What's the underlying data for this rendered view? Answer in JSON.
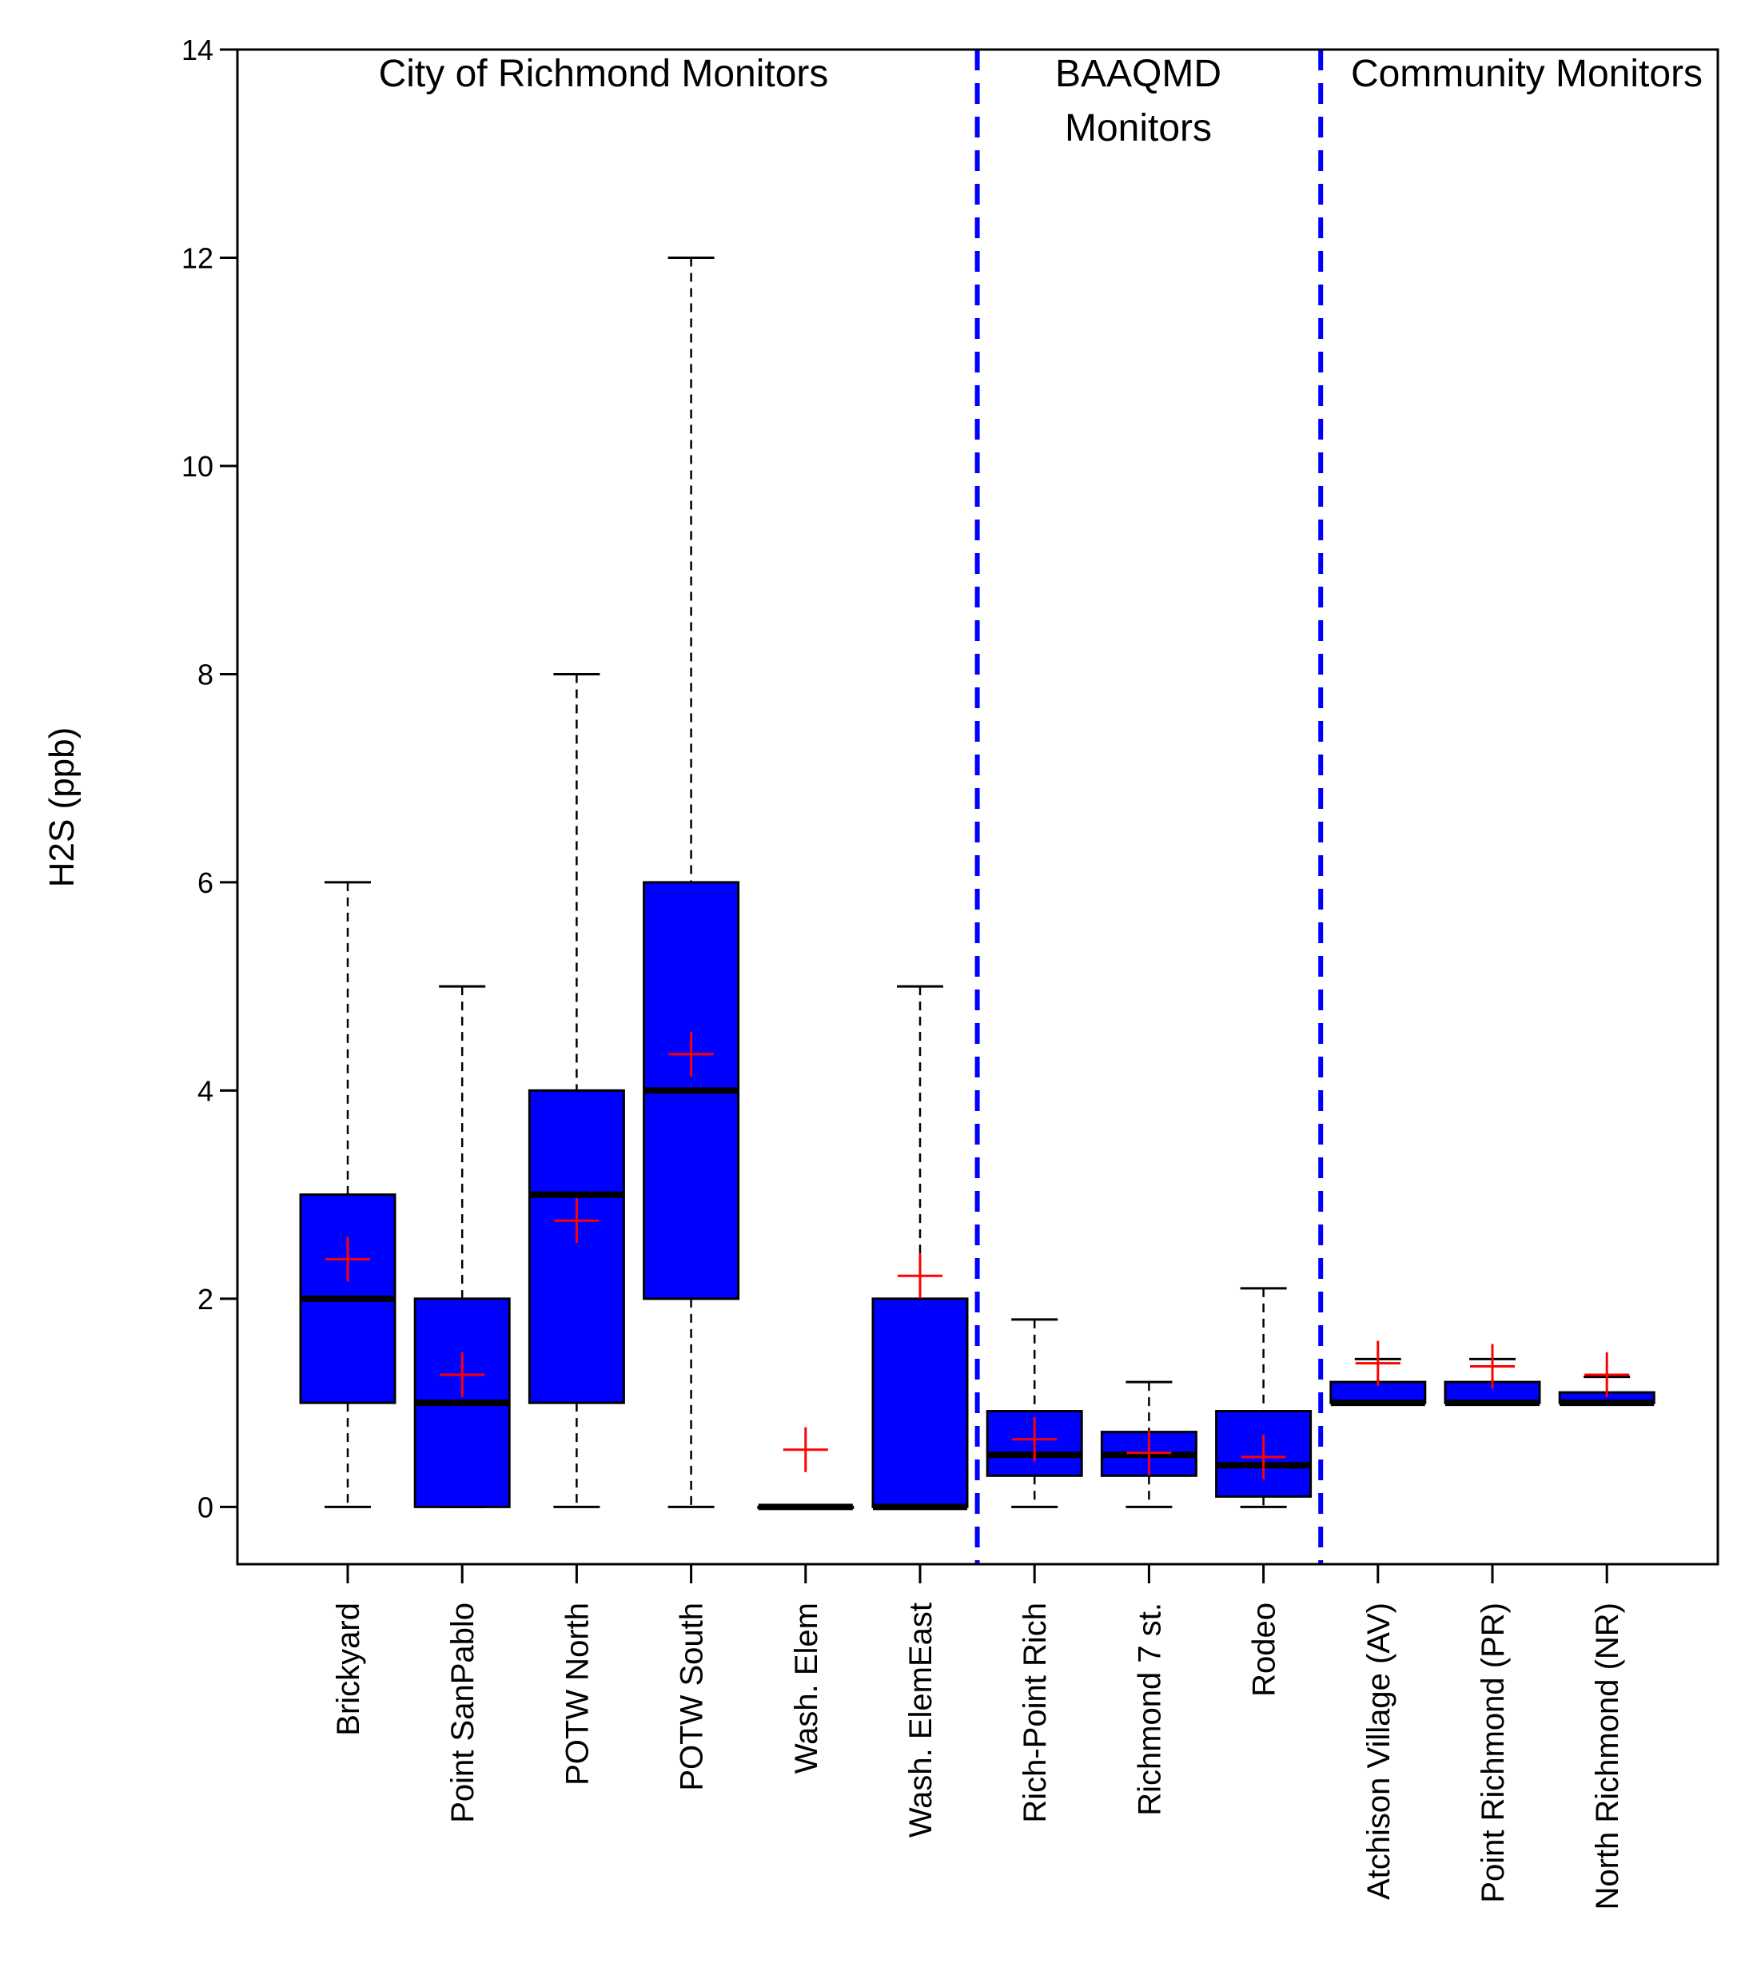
{
  "chart_data": {
    "type": "boxplot",
    "title": "",
    "xlabel": "",
    "ylabel": "H2S (ppb)",
    "ylim": [
      -0.55,
      14
    ],
    "yticks": [
      0,
      2,
      4,
      6,
      8,
      10,
      12,
      14
    ],
    "grid": false,
    "colors": {
      "box": "#0000ff",
      "median": "#000000",
      "mean_marker": "#ff0000",
      "divider": "#0000ff"
    },
    "groups": [
      {
        "label_lines": [
          "City of Richmond Monitors"
        ],
        "start_index": 0,
        "end_index": 5
      },
      {
        "label_lines": [
          "BAAQMD",
          "Monitors"
        ],
        "start_index": 6,
        "end_index": 8
      },
      {
        "label_lines": [
          "Community Monitors"
        ],
        "start_index": 9,
        "end_index": 11
      }
    ],
    "series": [
      {
        "name": "Brickyard",
        "whisker_low": 0,
        "q1": 1,
        "median": 2,
        "q3": 3,
        "whisker_high": 6,
        "mean": 2.38
      },
      {
        "name": "Point SanPablo",
        "whisker_low": 0,
        "q1": 0,
        "median": 1,
        "q3": 2,
        "whisker_high": 5,
        "mean": 1.27
      },
      {
        "name": "POTW North",
        "whisker_low": 0,
        "q1": 1,
        "median": 3,
        "q3": 4,
        "whisker_high": 8,
        "mean": 2.75
      },
      {
        "name": "POTW South",
        "whisker_low": 0,
        "q1": 2,
        "median": 4,
        "q3": 6,
        "whisker_high": 12,
        "mean": 4.35
      },
      {
        "name": "Wash. Elem",
        "whisker_low": 0,
        "q1": 0,
        "median": 0,
        "q3": 0,
        "whisker_high": 0,
        "mean": 0.55
      },
      {
        "name": "Wash. ElemEast",
        "whisker_low": 0,
        "q1": 0,
        "median": 0,
        "q3": 2,
        "whisker_high": 5,
        "mean": 2.22
      },
      {
        "name": "Rich-Point Rich",
        "whisker_low": 0,
        "q1": 0.3,
        "median": 0.5,
        "q3": 0.92,
        "whisker_high": 1.8,
        "mean": 0.65
      },
      {
        "name": "Richmond 7 st.",
        "whisker_low": 0,
        "q1": 0.3,
        "median": 0.5,
        "q3": 0.72,
        "whisker_high": 1.2,
        "mean": 0.52
      },
      {
        "name": "Rodeo",
        "whisker_low": 0,
        "q1": 0.1,
        "median": 0.4,
        "q3": 0.92,
        "whisker_high": 2.1,
        "mean": 0.48
      },
      {
        "name": "Atchison Village (AV)",
        "whisker_low": 1,
        "q1": 1,
        "median": 1,
        "q3": 1.2,
        "whisker_high": 1.42,
        "mean": 1.38
      },
      {
        "name": "Point Richmond (PR)",
        "whisker_low": 1,
        "q1": 1,
        "median": 1,
        "q3": 1.2,
        "whisker_high": 1.42,
        "mean": 1.35
      },
      {
        "name": "North Richmond (NR)",
        "whisker_low": 1,
        "q1": 1,
        "median": 1,
        "q3": 1.1,
        "whisker_high": 1.25,
        "mean": 1.27
      }
    ]
  }
}
